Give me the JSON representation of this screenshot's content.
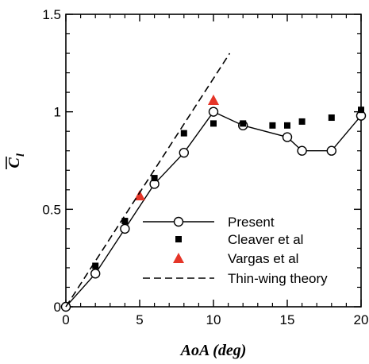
{
  "chart_data": {
    "type": "line",
    "xlabel": "AoA (deg)",
    "ylabel": "C",
    "ylabel_subscript": "l",
    "xlim": [
      0,
      20
    ],
    "ylim": [
      0,
      1.5
    ],
    "x_ticks": [
      "0",
      "5",
      "10",
      "15",
      "20"
    ],
    "y_ticks": [
      "0",
      "0.5",
      "1",
      "1.5"
    ],
    "grid": false,
    "legend_position": "lower-right",
    "series": [
      {
        "name": "Present",
        "style": "line-open-circle",
        "color": "#000000",
        "x": [
          0,
          2,
          4,
          6,
          8,
          10,
          12,
          15,
          16,
          18,
          20
        ],
        "y": [
          0,
          0.17,
          0.4,
          0.63,
          0.79,
          1.0,
          0.93,
          0.87,
          0.8,
          0.8,
          0.98
        ]
      },
      {
        "name": "Cleaver et al",
        "style": "filled-square",
        "color": "#000000",
        "x": [
          2,
          4,
          6,
          8,
          10,
          12,
          14,
          15,
          16,
          18,
          20
        ],
        "y": [
          0.21,
          0.44,
          0.66,
          0.89,
          0.94,
          0.94,
          0.93,
          0.93,
          0.95,
          0.97,
          1.01
        ]
      },
      {
        "name": "Vargas et al",
        "style": "filled-triangle",
        "color": "#e53528",
        "x": [
          5,
          10
        ],
        "y": [
          0.57,
          1.06
        ]
      },
      {
        "name": "Thin-wing theory",
        "style": "dashed-line",
        "color": "#000000",
        "x": [
          0,
          11.1
        ],
        "y": [
          0,
          1.3
        ]
      }
    ]
  }
}
